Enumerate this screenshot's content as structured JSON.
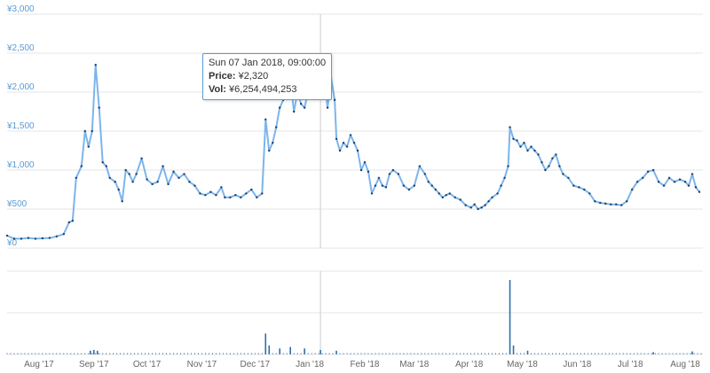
{
  "chart_data": {
    "type": "line",
    "price_series": {
      "unit": "¥",
      "ylim": [
        0,
        3000
      ],
      "yticks": [
        {
          "value": 0,
          "label": "¥0"
        },
        {
          "value": 500,
          "label": "¥500"
        },
        {
          "value": 1000,
          "label": "¥1,000"
        },
        {
          "value": 1500,
          "label": "¥1,500"
        },
        {
          "value": 2000,
          "label": "¥2,000"
        },
        {
          "value": 2500,
          "label": "¥2,500"
        },
        {
          "value": 3000,
          "label": "¥3,000"
        }
      ],
      "points": [
        [
          "2017-07-14",
          160
        ],
        [
          "2017-07-18",
          120
        ],
        [
          "2017-07-22",
          120
        ],
        [
          "2017-07-26",
          130
        ],
        [
          "2017-07-30",
          120
        ],
        [
          "2017-08-03",
          125
        ],
        [
          "2017-08-07",
          130
        ],
        [
          "2017-08-11",
          150
        ],
        [
          "2017-08-15",
          180
        ],
        [
          "2017-08-18",
          330
        ],
        [
          "2017-08-20",
          350
        ],
        [
          "2017-08-22",
          900
        ],
        [
          "2017-08-25",
          1050
        ],
        [
          "2017-08-27",
          1500
        ],
        [
          "2017-08-29",
          1300
        ],
        [
          "2017-08-31",
          1500
        ],
        [
          "2017-09-02",
          2350
        ],
        [
          "2017-09-04",
          1800
        ],
        [
          "2017-09-06",
          1100
        ],
        [
          "2017-09-08",
          1050
        ],
        [
          "2017-09-10",
          900
        ],
        [
          "2017-09-13",
          850
        ],
        [
          "2017-09-15",
          750
        ],
        [
          "2017-09-17",
          600
        ],
        [
          "2017-09-19",
          1000
        ],
        [
          "2017-09-21",
          950
        ],
        [
          "2017-09-23",
          850
        ],
        [
          "2017-09-25",
          950
        ],
        [
          "2017-09-28",
          1150
        ],
        [
          "2017-10-01",
          880
        ],
        [
          "2017-10-04",
          820
        ],
        [
          "2017-10-07",
          850
        ],
        [
          "2017-10-10",
          1050
        ],
        [
          "2017-10-13",
          820
        ],
        [
          "2017-10-16",
          980
        ],
        [
          "2017-10-19",
          900
        ],
        [
          "2017-10-22",
          950
        ],
        [
          "2017-10-25",
          850
        ],
        [
          "2017-10-28",
          800
        ],
        [
          "2017-10-31",
          700
        ],
        [
          "2017-11-03",
          680
        ],
        [
          "2017-11-06",
          720
        ],
        [
          "2017-11-09",
          680
        ],
        [
          "2017-11-12",
          780
        ],
        [
          "2017-11-14",
          650
        ],
        [
          "2017-11-17",
          650
        ],
        [
          "2017-11-20",
          680
        ],
        [
          "2017-11-23",
          650
        ],
        [
          "2017-11-26",
          700
        ],
        [
          "2017-11-29",
          750
        ],
        [
          "2017-12-02",
          650
        ],
        [
          "2017-12-05",
          700
        ],
        [
          "2017-12-07",
          1650
        ],
        [
          "2017-12-09",
          1250
        ],
        [
          "2017-12-11",
          1350
        ],
        [
          "2017-12-13",
          1550
        ],
        [
          "2017-12-15",
          1800
        ],
        [
          "2017-12-17",
          1900
        ],
        [
          "2017-12-19",
          2200
        ],
        [
          "2017-12-21",
          2150
        ],
        [
          "2017-12-23",
          1750
        ],
        [
          "2017-12-25",
          2000
        ],
        [
          "2017-12-27",
          1850
        ],
        [
          "2017-12-29",
          1800
        ],
        [
          "2017-12-31",
          2000
        ],
        [
          "2018-01-02",
          2050
        ],
        [
          "2018-01-04",
          1950
        ],
        [
          "2018-01-07",
          2320
        ],
        [
          "2018-01-09",
          2200
        ],
        [
          "2018-01-11",
          1800
        ],
        [
          "2018-01-13",
          2180
        ],
        [
          "2018-01-15",
          1900
        ],
        [
          "2018-01-16",
          1400
        ],
        [
          "2018-01-18",
          1250
        ],
        [
          "2018-01-20",
          1350
        ],
        [
          "2018-01-22",
          1300
        ],
        [
          "2018-01-24",
          1450
        ],
        [
          "2018-01-26",
          1350
        ],
        [
          "2018-01-28",
          1250
        ],
        [
          "2018-01-30",
          1000
        ],
        [
          "2018-02-01",
          1100
        ],
        [
          "2018-02-03",
          980
        ],
        [
          "2018-02-05",
          700
        ],
        [
          "2018-02-07",
          800
        ],
        [
          "2018-02-09",
          900
        ],
        [
          "2018-02-11",
          800
        ],
        [
          "2018-02-13",
          780
        ],
        [
          "2018-02-15",
          950
        ],
        [
          "2018-02-17",
          1000
        ],
        [
          "2018-02-20",
          950
        ],
        [
          "2018-02-23",
          800
        ],
        [
          "2018-02-26",
          750
        ],
        [
          "2018-03-01",
          800
        ],
        [
          "2018-03-04",
          1050
        ],
        [
          "2018-03-07",
          950
        ],
        [
          "2018-03-09",
          850
        ],
        [
          "2018-03-11",
          800
        ],
        [
          "2018-03-13",
          750
        ],
        [
          "2018-03-15",
          700
        ],
        [
          "2018-03-17",
          650
        ],
        [
          "2018-03-19",
          680
        ],
        [
          "2018-03-21",
          700
        ],
        [
          "2018-03-24",
          650
        ],
        [
          "2018-03-27",
          620
        ],
        [
          "2018-03-30",
          550
        ],
        [
          "2018-04-02",
          520
        ],
        [
          "2018-04-04",
          560
        ],
        [
          "2018-04-06",
          500
        ],
        [
          "2018-04-08",
          520
        ],
        [
          "2018-04-10",
          550
        ],
        [
          "2018-04-12",
          600
        ],
        [
          "2018-04-14",
          650
        ],
        [
          "2018-04-17",
          700
        ],
        [
          "2018-04-19",
          800
        ],
        [
          "2018-04-21",
          900
        ],
        [
          "2018-04-23",
          1050
        ],
        [
          "2018-04-24",
          1550
        ],
        [
          "2018-04-26",
          1400
        ],
        [
          "2018-04-28",
          1380
        ],
        [
          "2018-04-30",
          1300
        ],
        [
          "2018-05-02",
          1350
        ],
        [
          "2018-05-04",
          1250
        ],
        [
          "2018-05-06",
          1300
        ],
        [
          "2018-05-08",
          1250
        ],
        [
          "2018-05-10",
          1200
        ],
        [
          "2018-05-12",
          1100
        ],
        [
          "2018-05-14",
          1000
        ],
        [
          "2018-05-16",
          1050
        ],
        [
          "2018-05-18",
          1150
        ],
        [
          "2018-05-20",
          1200
        ],
        [
          "2018-05-22",
          1050
        ],
        [
          "2018-05-24",
          950
        ],
        [
          "2018-05-27",
          900
        ],
        [
          "2018-05-30",
          800
        ],
        [
          "2018-06-02",
          780
        ],
        [
          "2018-06-05",
          750
        ],
        [
          "2018-06-08",
          700
        ],
        [
          "2018-06-11",
          600
        ],
        [
          "2018-06-14",
          580
        ],
        [
          "2018-06-17",
          570
        ],
        [
          "2018-06-20",
          560
        ],
        [
          "2018-06-23",
          560
        ],
        [
          "2018-06-26",
          550
        ],
        [
          "2018-06-29",
          600
        ],
        [
          "2018-07-02",
          750
        ],
        [
          "2018-07-05",
          850
        ],
        [
          "2018-07-08",
          900
        ],
        [
          "2018-07-11",
          980
        ],
        [
          "2018-07-14",
          1000
        ],
        [
          "2018-07-17",
          850
        ],
        [
          "2018-07-20",
          800
        ],
        [
          "2018-07-23",
          900
        ],
        [
          "2018-07-26",
          850
        ],
        [
          "2018-07-29",
          880
        ],
        [
          "2018-08-01",
          850
        ],
        [
          "2018-08-03",
          800
        ],
        [
          "2018-08-05",
          950
        ],
        [
          "2018-08-07",
          780
        ],
        [
          "2018-08-09",
          720
        ]
      ]
    },
    "volume_series": {
      "points": [
        [
          "2017-08-30",
          0.05
        ],
        [
          "2017-09-01",
          0.06
        ],
        [
          "2017-09-03",
          0.05
        ],
        [
          "2017-12-07",
          0.28
        ],
        [
          "2017-12-09",
          0.12
        ],
        [
          "2017-12-15",
          0.08
        ],
        [
          "2017-12-21",
          0.1
        ],
        [
          "2017-12-29",
          0.08
        ],
        [
          "2018-01-07",
          0.06
        ],
        [
          "2018-01-16",
          0.05
        ],
        [
          "2018-04-24",
          1.0
        ],
        [
          "2018-04-26",
          0.12
        ],
        [
          "2018-05-04",
          0.05
        ],
        [
          "2018-07-14",
          0.03
        ],
        [
          "2018-08-05",
          0.04
        ]
      ]
    },
    "x_domain": [
      "2017-07-14",
      "2018-08-11"
    ],
    "xticks": [
      {
        "date": "2017-08-01",
        "label": "Aug '17"
      },
      {
        "date": "2017-09-01",
        "label": "Sep '17"
      },
      {
        "date": "2017-10-01",
        "label": "Oct '17"
      },
      {
        "date": "2017-11-01",
        "label": "Nov '17"
      },
      {
        "date": "2017-12-01",
        "label": "Dec '17"
      },
      {
        "date": "2018-01-01",
        "label": "Jan '18"
      },
      {
        "date": "2018-02-01",
        "label": "Feb '18"
      },
      {
        "date": "2018-03-01",
        "label": "Mar '18"
      },
      {
        "date": "2018-04-01",
        "label": "Apr '18"
      },
      {
        "date": "2018-05-01",
        "label": "May '18"
      },
      {
        "date": "2018-06-01",
        "label": "Jun '18"
      },
      {
        "date": "2018-07-01",
        "label": "Jul '18"
      },
      {
        "date": "2018-08-01",
        "label": "Aug '18"
      }
    ],
    "highlight": {
      "date": "2018-01-07",
      "price": 2320,
      "title": "Sun 07 Jan 2018, 09:00:00",
      "price_label": "Price:",
      "price_value": "¥2,320",
      "vol_label": "Vol:",
      "vol_value": "¥6,254,494,253"
    },
    "colors": {
      "line": "#7cb5ec",
      "marker": "#1f3f66",
      "volume_bar": "#2f6fad",
      "crosshair": "#cccccc",
      "grid": "#e6e6e6",
      "tick_text": "#666666",
      "ytick_text": "#5b9bd5"
    },
    "grid": true
  }
}
